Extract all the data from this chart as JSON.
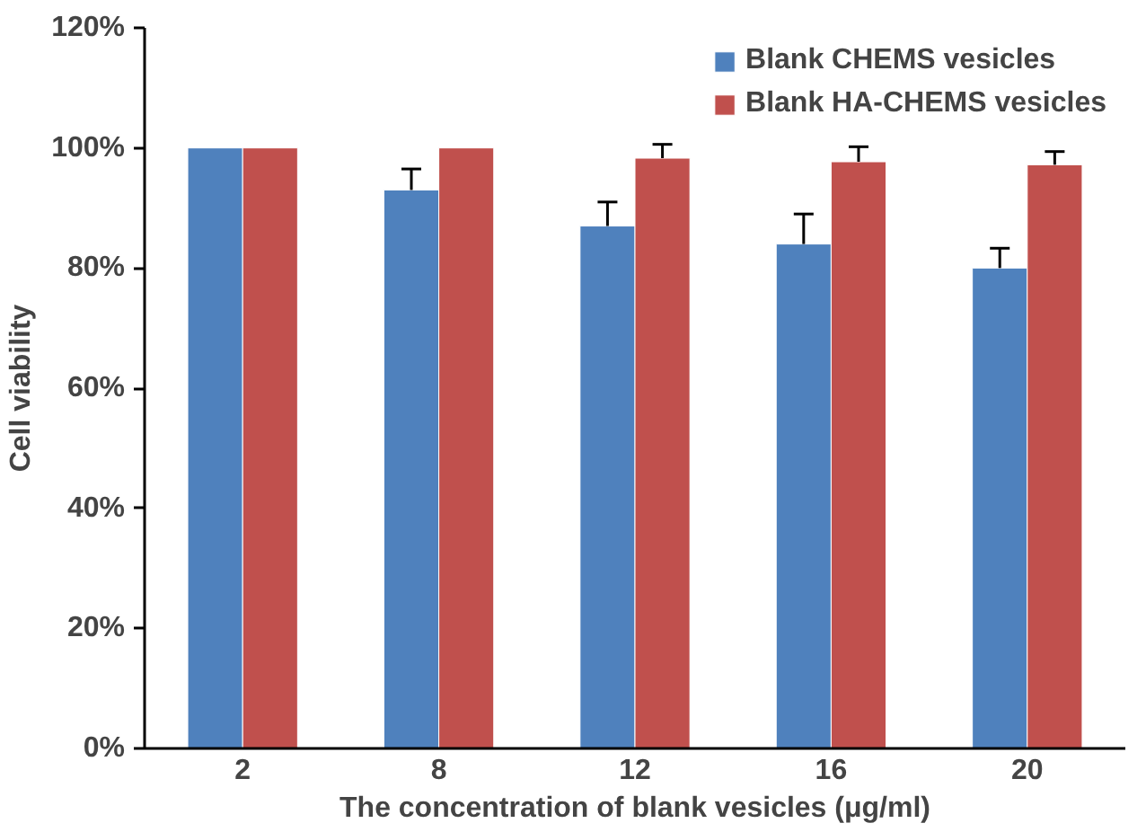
{
  "chart_data": {
    "type": "bar",
    "xlabel": "The concentration of blank vesicles (μg/ml)",
    "ylabel": "Cell viability",
    "categories": [
      "2",
      "8",
      "12",
      "16",
      "20"
    ],
    "series": [
      {
        "name": "Blank CHEMS vesicles",
        "color": "#4f81bd",
        "values": [
          100,
          93,
          87,
          84,
          80
        ],
        "errors": [
          null,
          3.5,
          4,
          5,
          3.3
        ]
      },
      {
        "name": "Blank HA-CHEMS vesicles",
        "color": "#c0504d",
        "values": [
          100,
          100,
          98.3,
          97.7,
          97.2
        ],
        "errors": [
          null,
          null,
          2.3,
          2.5,
          2.2
        ]
      }
    ],
    "ylim": [
      0,
      120
    ],
    "yticks": [
      {
        "value": 0,
        "label": "0%"
      },
      {
        "value": 20,
        "label": "20%"
      },
      {
        "value": 40,
        "label": "40%"
      },
      {
        "value": 60,
        "label": "60%"
      },
      {
        "value": 80,
        "label": "80%"
      },
      {
        "value": 100,
        "label": "100%"
      },
      {
        "value": 120,
        "label": "120%"
      }
    ],
    "grid": false,
    "legend": "top right"
  }
}
